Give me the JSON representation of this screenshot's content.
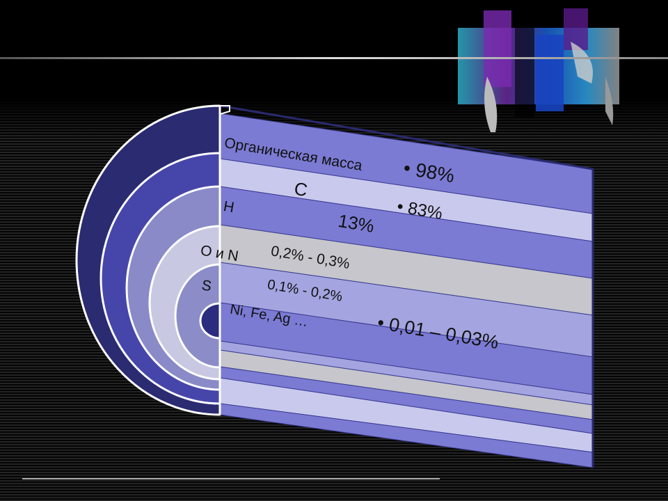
{
  "slide": {
    "labels": {
      "organic": "Органическая масса",
      "organic_value": "• 98%",
      "carbon": "C",
      "carbon_value": "• 83%",
      "hydrogen": "H",
      "hydrogen_value": "13%",
      "oxygen_nitrogen": "O и N",
      "oxygen_nitrogen_value": "0,2% - 0,3%",
      "sulfur": "S",
      "sulfur_value": "0,1% - 0,2%",
      "metals": "Ni, Fe, Ag …",
      "metals_value": "• 0,01 – 0,03%"
    },
    "colors": {
      "band_blue": "#7b7bd4",
      "band_light": "#c9c9ee",
      "band_gray": "#c6c6cc",
      "band_mid": "#a4a4e0",
      "ring_outer": "#2b2b72"
    },
    "decor": {
      "top_right_image": "world-map-collage"
    }
  }
}
